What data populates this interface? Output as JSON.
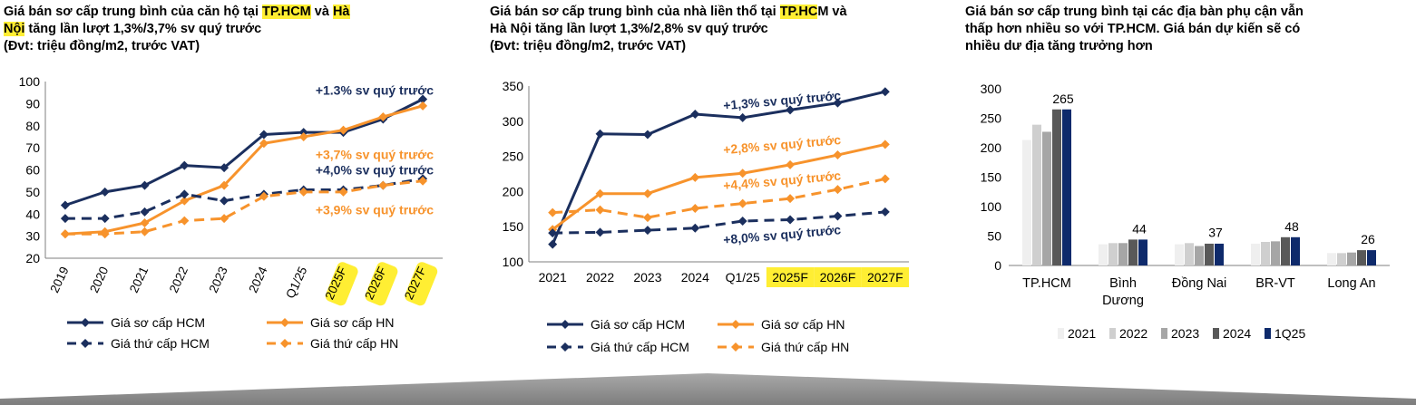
{
  "colors": {
    "hcm": "#1b2f5e",
    "hn": "#f7932c",
    "label_hcm": "#1b2f5e",
    "label_hn": "#f7932c",
    "highlight": "#ffee33",
    "bars": [
      "#efefef",
      "#cfcfcf",
      "#a6a6a6",
      "#595959",
      "#0e2a6b"
    ]
  },
  "panel1": {
    "title_pre": "Giá bán sơ cấp trung bình của căn hộ tại ",
    "title_hl1": "TP.HCM",
    "title_mid": " và ",
    "title_hl2a": "Hà",
    "title_hl2b": "Nội",
    "title_post": " tăng lần lượt 1,3%/3,7% sv quý trước",
    "unit": "(Đvt: triệu đồng/m2, trước VAT)"
  },
  "panel2": {
    "title_pre": "Giá bán sơ cấp trung bình của nhà liền thổ tại ",
    "title_hl": "TP.HC",
    "title_post": "M và",
    "title_line2": "Hà Nội tăng lần lượt 1,3%/2,8% sv quý trước",
    "unit": "(Đvt: triệu đồng/m2, trước VAT)"
  },
  "panel3": {
    "title_line1": "Giá bán sơ cấp trung bình tại các địa bàn phụ cận vẫn",
    "title_line2": "thấp hơn nhiều so với TP.HCM. Giá bán dự kiến sẽ có",
    "title_line3": "nhiều dư địa tăng trưởng hơn"
  },
  "chart_data": [
    {
      "type": "line",
      "title": "Giá bán sơ cấp trung bình của căn hộ tại TP.HCM và Hà Nội",
      "categories": [
        "2019",
        "2020",
        "2021",
        "2022",
        "2023",
        "2024",
        "Q1/25",
        "2025F",
        "2026F",
        "2027F"
      ],
      "highlighted_categories": [
        "2025F",
        "2026F",
        "2027F"
      ],
      "ylim": [
        20,
        100
      ],
      "yticks": [
        20,
        30,
        40,
        50,
        60,
        70,
        80,
        90,
        100
      ],
      "series": [
        {
          "name": "Giá sơ cấp HCM",
          "style": "solid",
          "color": "hcm",
          "values": [
            44,
            50,
            53,
            62,
            61,
            76,
            77,
            77,
            83,
            92
          ]
        },
        {
          "name": "Giá sơ cấp HN",
          "style": "solid",
          "color": "hn",
          "values": [
            31,
            32,
            36,
            46,
            53,
            72,
            75,
            78,
            84,
            89
          ]
        },
        {
          "name": "Giá thứ cấp HCM",
          "style": "dashed",
          "color": "hcm",
          "values": [
            38,
            38,
            41,
            49,
            46,
            49,
            51,
            51,
            53,
            56
          ]
        },
        {
          "name": "Giá thứ cấp HN",
          "style": "dashed",
          "color": "hn",
          "values": [
            31,
            31,
            32,
            37,
            38,
            48,
            50,
            50,
            53,
            55
          ]
        }
      ],
      "annotations": [
        {
          "text": "+1.3% sv quý trước",
          "color": "hcm",
          "at": [
            6.3,
            94
          ]
        },
        {
          "text": "+3,7% sv quý trước",
          "color": "hn",
          "at": [
            6.3,
            65
          ]
        },
        {
          "text": "+4,0% sv quý trước",
          "color": "hcm",
          "at": [
            6.3,
            58
          ]
        },
        {
          "text": "+3,9% sv quý trước",
          "color": "hn",
          "at": [
            6.3,
            40
          ]
        }
      ],
      "legend": "bottom"
    },
    {
      "type": "line",
      "title": "Giá bán sơ cấp trung bình của nhà liền thổ tại TP.HCM và Hà Nội",
      "categories": [
        "2021",
        "2022",
        "2023",
        "2024",
        "Q1/25",
        "2025F",
        "2026F",
        "2027F"
      ],
      "highlighted_categories": [
        "2025F",
        "2026F",
        "2027F"
      ],
      "ylim": [
        100,
        350
      ],
      "yticks": [
        100,
        150,
        200,
        250,
        300,
        350
      ],
      "series": [
        {
          "name": "Giá sơ cấp HCM",
          "style": "solid",
          "color": "hcm",
          "values": [
            125,
            282,
            281,
            310,
            305,
            316,
            326,
            342
          ]
        },
        {
          "name": "Giá sơ cấp HN",
          "style": "solid",
          "color": "hn",
          "values": [
            146,
            197,
            197,
            220,
            226,
            238,
            252,
            267
          ]
        },
        {
          "name": "Giá thứ cấp HCM",
          "style": "dashed",
          "color": "hcm",
          "values": [
            141,
            142,
            145,
            148,
            158,
            160,
            165,
            171
          ]
        },
        {
          "name": "Giá thứ cấp HN",
          "style": "dashed",
          "color": "hn",
          "values": [
            170,
            174,
            163,
            176,
            183,
            190,
            203,
            218
          ]
        }
      ],
      "annotations": [
        {
          "text": "+1,3% sv quý trước",
          "color": "hcm",
          "at": [
            3.6,
            316
          ]
        },
        {
          "text": "+2,8% sv quý trước",
          "color": "hn",
          "at": [
            3.6,
            253
          ]
        },
        {
          "text": "+4,4% sv quý trước",
          "color": "hn",
          "at": [
            3.6,
            202
          ]
        },
        {
          "text": "+8,0% sv quý trước",
          "color": "hcm",
          "at": [
            3.6,
            125
          ]
        }
      ],
      "legend": "bottom"
    },
    {
      "type": "bar",
      "title": "Giá bán sơ cấp trung bình tại các địa bàn phụ cận",
      "categories": [
        [
          "TP.HCM"
        ],
        [
          "Bình",
          "Dương"
        ],
        [
          "Đồng Nai"
        ],
        [
          "BR-VT"
        ],
        [
          "Long An"
        ]
      ],
      "ylim": [
        0,
        300
      ],
      "yticks": [
        0,
        50,
        100,
        150,
        200,
        250,
        300
      ],
      "series": [
        {
          "name": "2021",
          "values": [
            213,
            36,
            36,
            37,
            21
          ]
        },
        {
          "name": "2022",
          "values": [
            239,
            38,
            38,
            40,
            21
          ]
        },
        {
          "name": "2023",
          "values": [
            227,
            38,
            33,
            41,
            22
          ]
        },
        {
          "name": "2024",
          "values": [
            265,
            44,
            37,
            48,
            26
          ]
        },
        {
          "name": "1Q25",
          "values": [
            265,
            44,
            37,
            48,
            26
          ]
        }
      ],
      "data_labels": [
        "265",
        "44",
        "37",
        "48",
        "26"
      ],
      "legend": "bottom"
    }
  ]
}
